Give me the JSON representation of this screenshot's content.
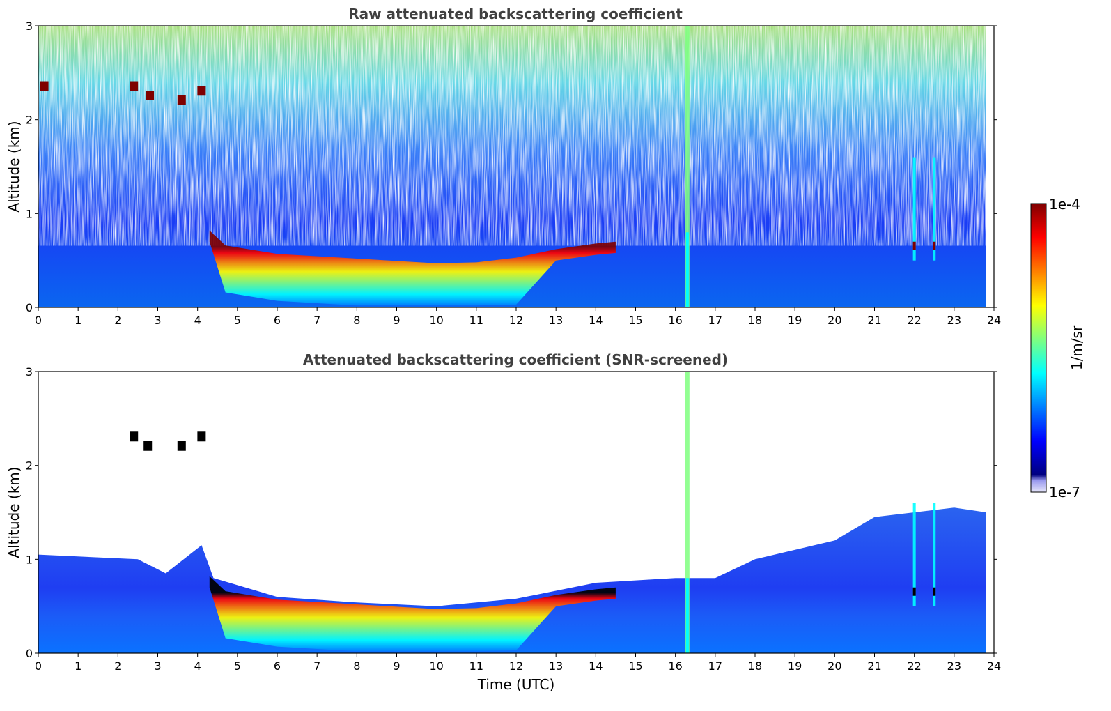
{
  "colors": {
    "jet": [
      "#00007f",
      "#0000ff",
      "#007fff",
      "#00ffff",
      "#7fff7f",
      "#ffff00",
      "#ff7f00",
      "#ff0000",
      "#7f0000"
    ],
    "below_scale": "#e6e6fa",
    "saturated": "#000000",
    "frame": "#000000",
    "title": "#404040"
  },
  "colorbar": {
    "label": "1/m/sr",
    "max_label": "1e-4",
    "min_label": "1e-7",
    "scale": "log",
    "range": [
      1e-07,
      0.0001
    ]
  },
  "chart_data": [
    {
      "type": "heatmap",
      "title": "Raw attenuated backscattering coefficient",
      "xlabel": "",
      "ylabel": "Altitude (km)",
      "xlim": [
        0,
        24
      ],
      "ylim": [
        0,
        3
      ],
      "xticks": [
        "0",
        "1",
        "2",
        "3",
        "4",
        "5",
        "6",
        "7",
        "8",
        "9",
        "10",
        "11",
        "12",
        "13",
        "14",
        "15",
        "16",
        "17",
        "18",
        "19",
        "20",
        "21",
        "22",
        "23",
        "24"
      ],
      "yticks": [
        "0",
        "1",
        "2",
        "3"
      ],
      "data_end_hour": 23.8,
      "features": {
        "boundary_layer_top_km": [
          [
            4.3,
            0.82
          ],
          [
            4.7,
            0.66
          ],
          [
            6,
            0.57
          ],
          [
            8,
            0.52
          ],
          [
            10,
            0.47
          ],
          [
            11,
            0.48
          ],
          [
            12,
            0.53
          ],
          [
            13,
            0.62
          ],
          [
            14,
            0.68
          ],
          [
            14.5,
            0.7
          ]
        ],
        "high_clouds": [
          [
            0.15,
            2.35
          ],
          [
            2.4,
            2.35
          ],
          [
            2.8,
            2.25
          ],
          [
            3.6,
            2.2
          ],
          [
            4.1,
            2.3
          ]
        ],
        "vertical_streak_hour": 16.3,
        "precip_streaks_hours": [
          22.0,
          22.5
        ]
      }
    },
    {
      "type": "heatmap",
      "title": "Attenuated backscattering coefficient (SNR-screened)",
      "xlabel": "Time (UTC)",
      "ylabel": "Altitude (km)",
      "xlim": [
        0,
        24
      ],
      "ylim": [
        0,
        3
      ],
      "xticks": [
        "0",
        "1",
        "2",
        "3",
        "4",
        "5",
        "6",
        "7",
        "8",
        "9",
        "10",
        "11",
        "12",
        "13",
        "14",
        "15",
        "16",
        "17",
        "18",
        "19",
        "20",
        "21",
        "22",
        "23",
        "24"
      ],
      "yticks": [
        "0",
        "1",
        "2",
        "3"
      ],
      "data_end_hour": 23.8,
      "features": {
        "boundary_layer_top_km": [
          [
            4.3,
            0.82
          ],
          [
            4.7,
            0.66
          ],
          [
            6,
            0.57
          ],
          [
            8,
            0.52
          ],
          [
            10,
            0.47
          ],
          [
            11,
            0.48
          ],
          [
            12,
            0.53
          ],
          [
            13,
            0.62
          ],
          [
            14,
            0.68
          ],
          [
            14.5,
            0.7
          ]
        ],
        "screened_top_km": [
          [
            0,
            1.05
          ],
          [
            2.5,
            1.0
          ],
          [
            3.2,
            0.85
          ],
          [
            4.1,
            1.15
          ],
          [
            4.4,
            0.8
          ],
          [
            6,
            0.6
          ],
          [
            8,
            0.54
          ],
          [
            10,
            0.5
          ],
          [
            12,
            0.58
          ],
          [
            14,
            0.75
          ],
          [
            16,
            0.8
          ],
          [
            17,
            0.8
          ],
          [
            18,
            1.0
          ],
          [
            20,
            1.2
          ],
          [
            21,
            1.45
          ],
          [
            22,
            1.5
          ],
          [
            23,
            1.55
          ],
          [
            23.8,
            1.5
          ]
        ],
        "vertical_streak_hour": 16.3,
        "precip_streaks_hours": [
          22.0,
          22.5
        ]
      }
    }
  ]
}
